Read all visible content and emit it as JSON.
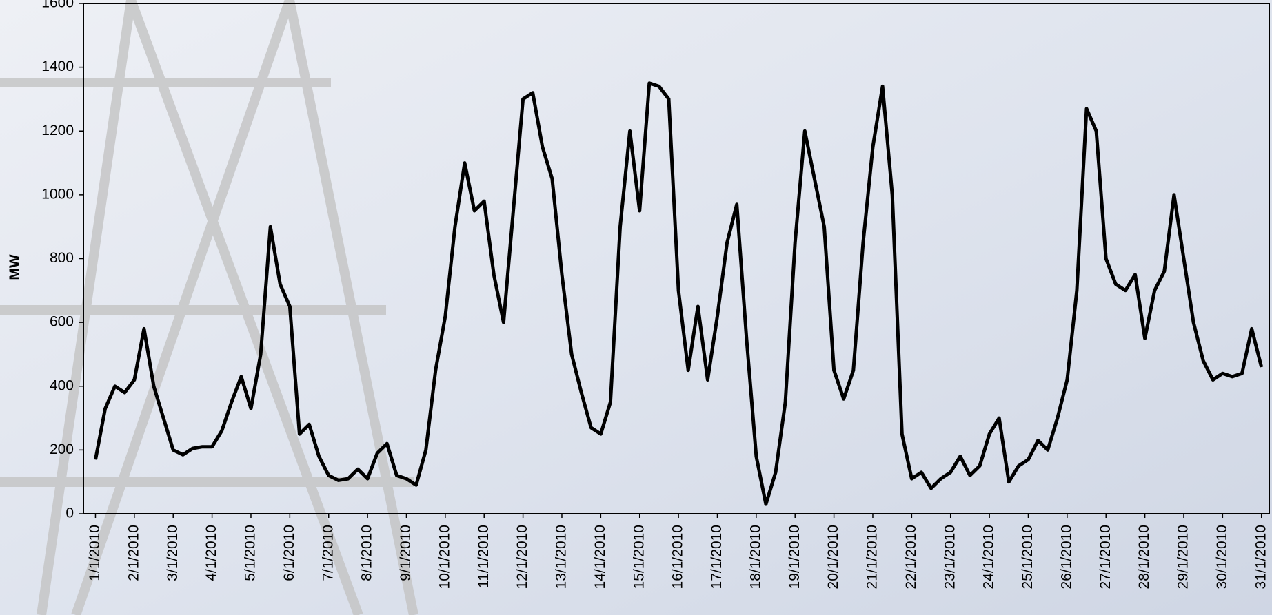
{
  "chart_data": {
    "type": "line",
    "y_label": "MW",
    "x": [
      0,
      0.25,
      0.5,
      0.75,
      1,
      1.25,
      1.5,
      1.75,
      2,
      2.25,
      2.5,
      2.75,
      3,
      3.25,
      3.5,
      3.75,
      4,
      4.25,
      4.5,
      4.75,
      5,
      5.25,
      5.5,
      5.75,
      6,
      6.25,
      6.5,
      6.75,
      7,
      7.25,
      7.5,
      7.75,
      8,
      8.25,
      8.5,
      8.75,
      9,
      9.25,
      9.5,
      9.75,
      10,
      10.25,
      10.5,
      10.75,
      11,
      11.25,
      11.5,
      11.75,
      12,
      12.25,
      12.5,
      12.75,
      13,
      13.25,
      13.5,
      13.75,
      14,
      14.25,
      14.5,
      14.75,
      15,
      15.25,
      15.5,
      15.75,
      16,
      16.25,
      16.5,
      16.75,
      17,
      17.25,
      17.5,
      17.75,
      18,
      18.25,
      18.5,
      18.75,
      19,
      19.25,
      19.5,
      19.75,
      20,
      20.25,
      20.5,
      20.75,
      21,
      21.25,
      21.5,
      21.75,
      22,
      22.25,
      22.5,
      22.75,
      23,
      23.25,
      23.5,
      23.75,
      24,
      24.25,
      24.5,
      24.75,
      25,
      25.25,
      25.5,
      25.75,
      26,
      26.25,
      26.5,
      26.75,
      27,
      27.25,
      27.5,
      27.75,
      28,
      28.25,
      28.5,
      28.75,
      29,
      29.25,
      29.5,
      29.75,
      30
    ],
    "series": [
      {
        "color": "#000000",
        "values": [
          170,
          330,
          400,
          380,
          420,
          580,
          400,
          300,
          200,
          185,
          205,
          210,
          210,
          260,
          350,
          430,
          330,
          500,
          900,
          720,
          650,
          250,
          280,
          180,
          120,
          105,
          110,
          140,
          110,
          190,
          220,
          120,
          110,
          90,
          200,
          450,
          620,
          900,
          1100,
          950,
          980,
          750,
          600,
          950,
          1300,
          1320,
          1150,
          1050,
          750,
          500,
          380,
          270,
          250,
          350,
          900,
          1200,
          950,
          1350,
          1340,
          1300,
          700,
          450,
          650,
          420,
          620,
          850,
          970,
          550,
          180,
          30,
          130,
          350,
          850,
          1200,
          1050,
          900,
          450,
          360,
          450,
          850,
          1150,
          1340,
          1000,
          250,
          110,
          130,
          80,
          110,
          130,
          180,
          120,
          150,
          250,
          300,
          100,
          150,
          170,
          230,
          200,
          300,
          420,
          700,
          1270,
          1200,
          800,
          720,
          700,
          750,
          550,
          700,
          760,
          1000,
          800,
          600,
          480,
          420,
          440,
          430,
          440,
          580,
          460
        ]
      }
    ],
    "xlim": [
      -0.31,
      30.2
    ],
    "xticks": [
      {
        "value": 0,
        "label": "1/1/2010"
      },
      {
        "value": 1,
        "label": "2/1/2010"
      },
      {
        "value": 2,
        "label": "3/1/2010"
      },
      {
        "value": 3,
        "label": "4/1/2010"
      },
      {
        "value": 4,
        "label": "5/1/2010"
      },
      {
        "value": 5,
        "label": "6/1/2010"
      },
      {
        "value": 6,
        "label": "7/1/2010"
      },
      {
        "value": 7,
        "label": "8/1/2010"
      },
      {
        "value": 8,
        "label": "9/1/2010"
      },
      {
        "value": 9,
        "label": "10/1/2010"
      },
      {
        "value": 10,
        "label": "11/1/2010"
      },
      {
        "value": 11,
        "label": "12/1/2010"
      },
      {
        "value": 12,
        "label": "13/1/2010"
      },
      {
        "value": 13,
        "label": "14/1/2010"
      },
      {
        "value": 14,
        "label": "15/1/2010"
      },
      {
        "value": 15,
        "label": "16/1/2010"
      },
      {
        "value": 16,
        "label": "17/1/2010"
      },
      {
        "value": 17,
        "label": "18/1/2010"
      },
      {
        "value": 18,
        "label": "19/1/2010"
      },
      {
        "value": 19,
        "label": "20/1/2010"
      },
      {
        "value": 20,
        "label": "21/1/2010"
      },
      {
        "value": 21,
        "label": "22/1/2010"
      },
      {
        "value": 22,
        "label": "23/1/2010"
      },
      {
        "value": 23,
        "label": "24/1/2010"
      },
      {
        "value": 24,
        "label": "25/1/2010"
      },
      {
        "value": 25,
        "label": "26/1/2010"
      },
      {
        "value": 26,
        "label": "27/1/2010"
      },
      {
        "value": 27,
        "label": "28/1/2010"
      },
      {
        "value": 28,
        "label": "29/1/2010"
      },
      {
        "value": 29,
        "label": "30/1/2010"
      },
      {
        "value": 30,
        "label": "31/1/2010"
      }
    ],
    "ylim": [
      0,
      1600
    ],
    "yticks": [
      0,
      200,
      400,
      600,
      800,
      1000,
      1200,
      1400,
      1600
    ]
  }
}
